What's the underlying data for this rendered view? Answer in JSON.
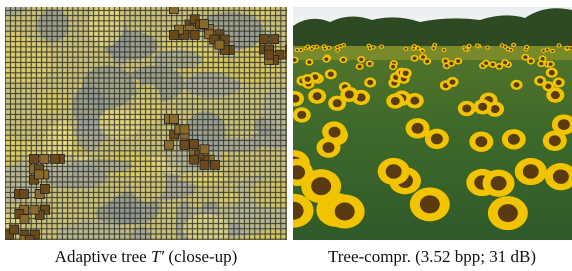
{
  "figure": {
    "left_caption": {
      "before": "Adaptive tree ",
      "symbol": "T′",
      "after": " (close-up)"
    },
    "right_caption": "Tree-compr. (3.52 bpp; 31 dB)"
  }
}
